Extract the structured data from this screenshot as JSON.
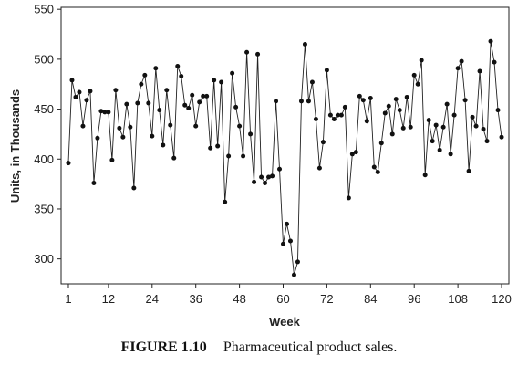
{
  "chart_data": {
    "type": "line",
    "title": "",
    "xlabel": "Week",
    "ylabel": "Units, in Thousands",
    "xlim": [
      -1,
      122
    ],
    "ylim": [
      275,
      552
    ],
    "xticks": [
      1,
      12,
      24,
      36,
      48,
      60,
      72,
      84,
      96,
      108,
      120
    ],
    "yticks": [
      300,
      350,
      400,
      450,
      500,
      550
    ],
    "grid": false,
    "markers": "filled-circle",
    "series": [
      {
        "x": [
          1,
          2,
          3,
          4,
          5,
          6,
          7,
          8,
          9,
          10,
          11,
          12,
          13,
          14,
          15,
          16,
          17,
          18,
          19,
          20,
          21,
          22,
          23,
          24,
          25,
          26,
          27,
          28,
          29,
          30,
          31,
          32,
          33,
          34,
          35,
          36,
          37,
          38,
          39,
          40,
          41,
          42,
          43,
          44,
          45,
          46,
          47,
          48,
          49,
          50,
          51,
          52,
          53,
          54,
          55,
          56,
          57,
          58,
          59,
          60,
          61,
          62,
          63,
          64,
          65,
          66,
          67,
          68,
          69,
          70,
          71,
          72,
          73,
          74,
          75,
          76,
          77,
          78,
          79,
          80,
          81,
          82,
          83,
          84,
          85,
          86,
          87,
          88,
          89,
          90,
          91,
          92,
          93,
          94,
          95,
          96,
          97,
          98,
          99,
          100,
          101,
          102,
          103,
          104,
          105,
          106,
          107,
          108,
          109,
          110,
          111,
          112,
          113,
          114,
          115,
          116,
          117,
          118,
          119,
          120
        ],
        "values": [
          396,
          479,
          462,
          467,
          433,
          459,
          468,
          376,
          421,
          448,
          447,
          447,
          399,
          469,
          431,
          422,
          455,
          432,
          371,
          456,
          475,
          484,
          456,
          423,
          491,
          449,
          414,
          469,
          434,
          401,
          493,
          483,
          454,
          451,
          464,
          433,
          457,
          463,
          463,
          411,
          479,
          413,
          477,
          357,
          403,
          486,
          452,
          433,
          403,
          507,
          425,
          377,
          505,
          382,
          376,
          382,
          383,
          458,
          390,
          315,
          335,
          318,
          284,
          297,
          458,
          515,
          458,
          477,
          440,
          391,
          417,
          489,
          444,
          440,
          444,
          444,
          452,
          361,
          405,
          407,
          463,
          459,
          438,
          461,
          392,
          387,
          416,
          446,
          453,
          425,
          460,
          449,
          431,
          462,
          432,
          484,
          475,
          499,
          384,
          439,
          418,
          434,
          409,
          432,
          455,
          405,
          444,
          491,
          498,
          459,
          388,
          442,
          433,
          488,
          430,
          418,
          518,
          497,
          449,
          422
        ]
      }
    ]
  },
  "caption": {
    "label": "FIGURE 1.10",
    "text": "Pharmaceutical product sales."
  }
}
